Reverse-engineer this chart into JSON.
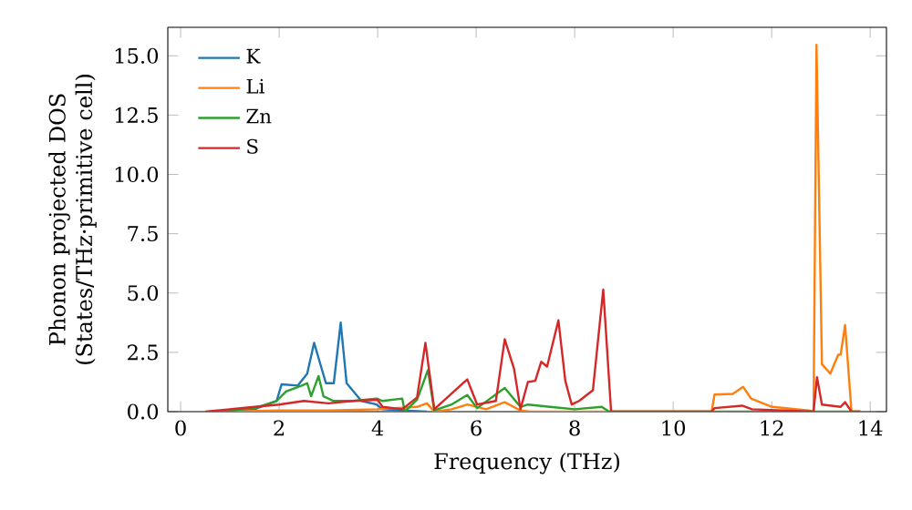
{
  "chart_data": {
    "type": "line",
    "xlabel": "Frequency (THz)",
    "ylabel": "Phonon projected DOS (States/THz·primitive cell)",
    "xlim": [
      -0.26,
      14.33
    ],
    "ylim": [
      0,
      16.2
    ],
    "xticks": [
      0,
      2,
      4,
      6,
      8,
      10,
      12,
      14
    ],
    "yticks": [
      {
        "value": 0,
        "label": "0.0"
      },
      {
        "value": 2.5,
        "label": "2.5"
      },
      {
        "value": 5,
        "label": "5.0"
      },
      {
        "value": 7.5,
        "label": "7.5"
      },
      {
        "value": 10,
        "label": "10.0"
      },
      {
        "value": 12.5,
        "label": "12.5"
      },
      {
        "value": 15,
        "label": "15.0"
      }
    ],
    "legend": "top left",
    "grid": false,
    "marker": "none",
    "line_style": "solid",
    "series": [
      {
        "name": "K",
        "color": "#1f77b4",
        "x": [
          0.8,
          1.5,
          1.95,
          2.05,
          2.38,
          2.57,
          2.71,
          2.95,
          3.11,
          3.25,
          3.37,
          3.67,
          3.98,
          4.1,
          4.5,
          5.0
        ],
        "values": [
          0,
          0.1,
          0.46,
          1.15,
          1.1,
          1.6,
          2.9,
          1.2,
          1.2,
          3.75,
          1.2,
          0.45,
          0.3,
          0.1,
          0.05,
          0
        ]
      },
      {
        "name": "Li",
        "color": "#ff7f0e",
        "x": [
          0.8,
          2.0,
          3.0,
          4.0,
          4.8,
          5.0,
          5.15,
          5.5,
          5.82,
          6.2,
          6.58,
          6.9,
          7.1,
          9.0,
          10.78,
          10.84,
          11.21,
          11.42,
          11.58,
          12.01,
          12.75,
          12.85,
          12.91,
          13.02,
          13.19,
          13.35,
          13.4,
          13.49,
          13.62,
          13.8
        ],
        "values": [
          0,
          0.05,
          0.05,
          0.1,
          0.2,
          0.35,
          0,
          0.1,
          0.3,
          0.1,
          0.4,
          0.05,
          0,
          0,
          0,
          0.72,
          0.75,
          1.05,
          0.55,
          0.2,
          0.05,
          0,
          15.46,
          2.0,
          1.6,
          2.4,
          2.4,
          3.65,
          0,
          0
        ]
      },
      {
        "name": "Zn",
        "color": "#2ca02c",
        "x": [
          0.8,
          1.5,
          1.95,
          2.14,
          2.46,
          2.57,
          2.65,
          2.8,
          2.9,
          3.1,
          3.5,
          3.98,
          4.1,
          4.5,
          4.55,
          4.8,
          5.02,
          5.15,
          5.5,
          5.82,
          6.02,
          6.58,
          6.9,
          7.05,
          7.5,
          8.0,
          8.55,
          8.7,
          10.0,
          13.8
        ],
        "values": [
          0,
          0.15,
          0.45,
          0.85,
          1.1,
          1.2,
          0.65,
          1.5,
          0.65,
          0.45,
          0.45,
          0.55,
          0.45,
          0.55,
          0,
          0.5,
          1.75,
          0.05,
          0.3,
          0.7,
          0.15,
          1.0,
          0.2,
          0.3,
          0.2,
          0.1,
          0.2,
          0,
          0,
          0
        ]
      },
      {
        "name": "S",
        "color": "#d62728",
        "x": [
          0.5,
          1.0,
          1.5,
          2.0,
          2.5,
          3.0,
          3.5,
          4.0,
          4.1,
          4.5,
          4.8,
          4.97,
          5.15,
          5.82,
          6.02,
          6.4,
          6.58,
          6.77,
          6.9,
          7.05,
          7.2,
          7.32,
          7.44,
          7.67,
          7.81,
          7.94,
          8.09,
          8.37,
          8.58,
          8.74,
          10.78,
          10.84,
          11.4,
          11.6,
          12.85,
          12.92,
          13.02,
          13.4,
          13.49,
          13.62,
          13.8
        ],
        "values": [
          0,
          0.1,
          0.2,
          0.3,
          0.45,
          0.35,
          0.45,
          0.5,
          0.2,
          0.1,
          0.6,
          2.9,
          0.1,
          1.36,
          0.3,
          0.45,
          3.05,
          1.8,
          0.1,
          1.25,
          1.3,
          2.1,
          1.9,
          3.85,
          1.3,
          0.3,
          0.45,
          0.9,
          5.15,
          0,
          0,
          0.15,
          0.25,
          0.1,
          0,
          1.45,
          0.3,
          0.2,
          0.4,
          0,
          0
        ]
      }
    ]
  }
}
